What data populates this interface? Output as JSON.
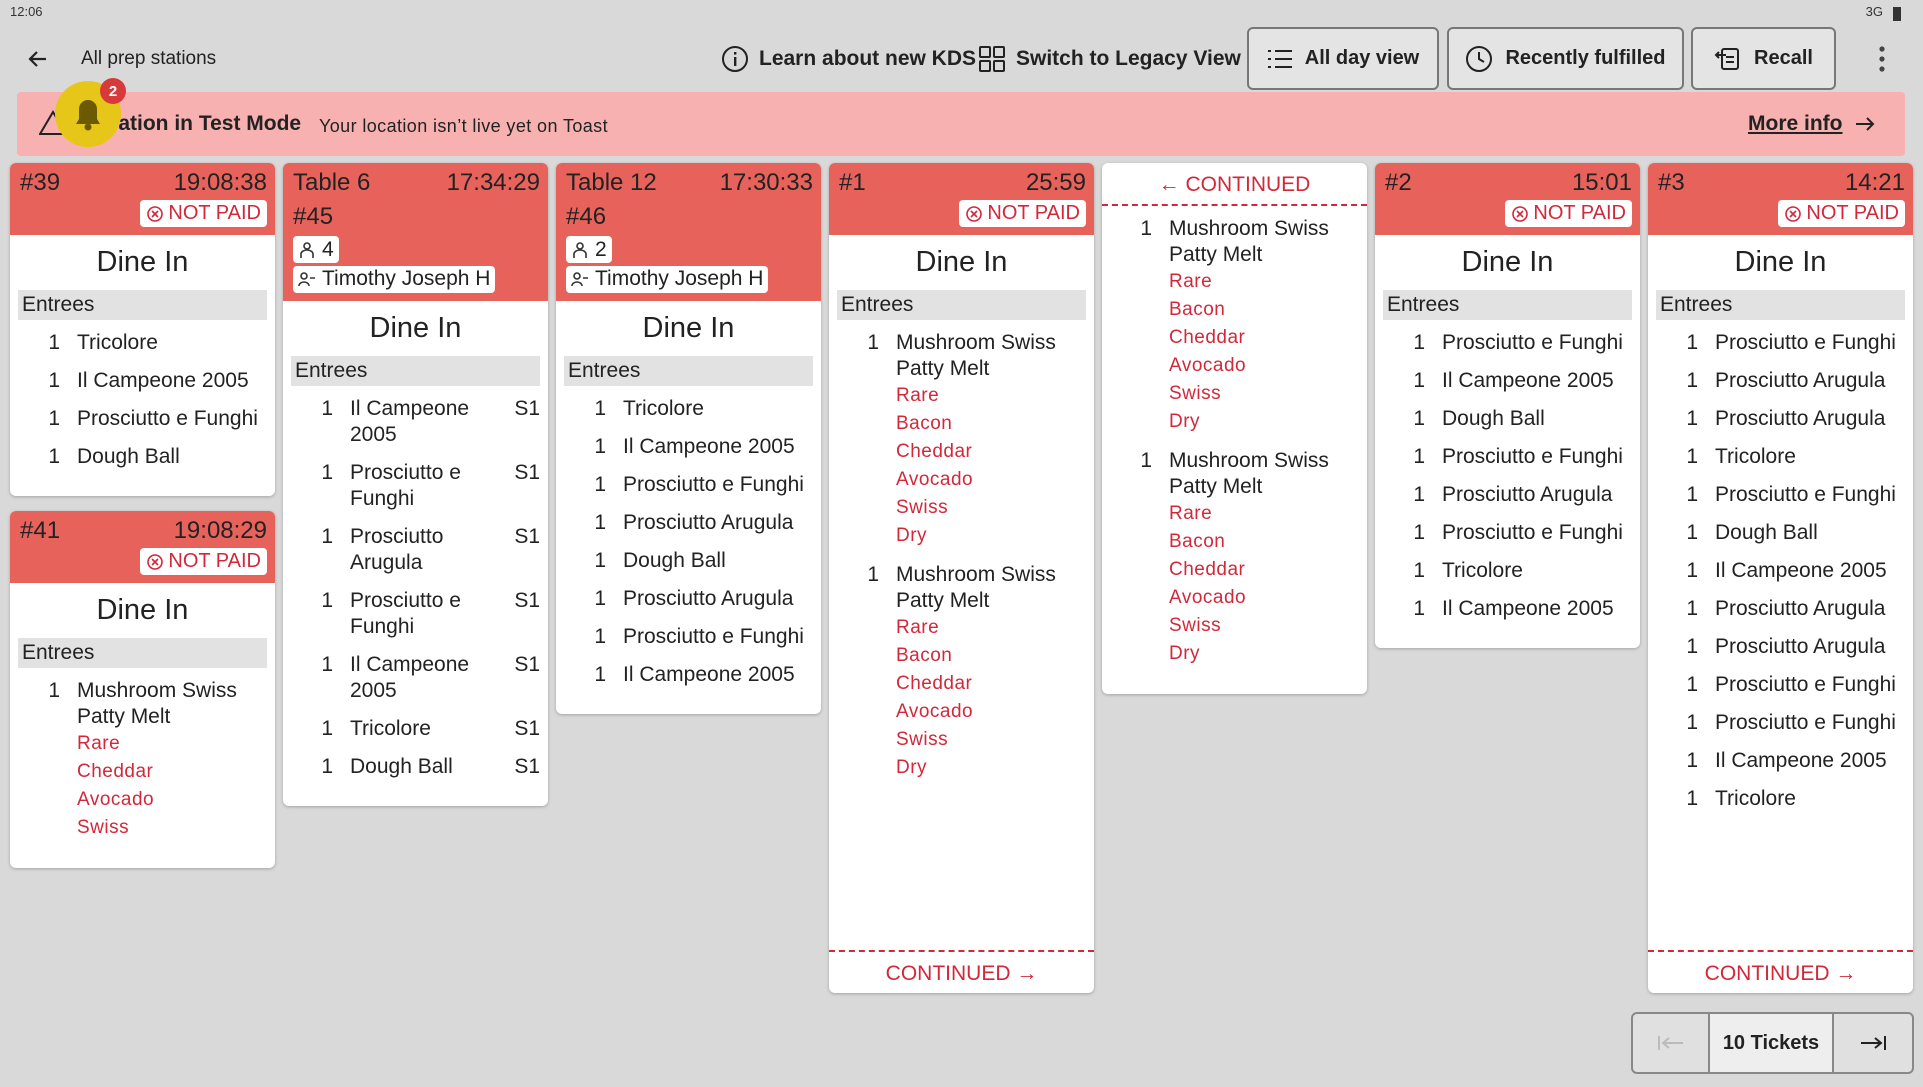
{
  "status_bar": {
    "time": "12:06",
    "network": "3G"
  },
  "toolbar": {
    "title": "All prep stations",
    "learn": "Learn about new KDS",
    "legacy": "Switch to Legacy View",
    "buttons": [
      "All day view",
      "Recently fulfilled",
      "Recall"
    ]
  },
  "notification": {
    "count": 2
  },
  "banner": {
    "title": "Location in Test Mode",
    "message": "Your location isn’t live yet on Toast",
    "link": "More info"
  },
  "columns": [
    {
      "tickets": [
        {
          "name": "#39",
          "time": "19:08:38",
          "payment": "NOT PAID",
          "order_type": "Dine In",
          "section": "Entrees",
          "items": [
            {
              "qty": 1,
              "name": "Tricolore"
            },
            {
              "qty": 1,
              "name": "Il Campeone 2005"
            },
            {
              "qty": 1,
              "name": "Prosciutto e Funghi"
            },
            {
              "qty": 1,
              "name": "Dough Ball"
            }
          ]
        },
        {
          "name": "#41",
          "time": "19:08:29",
          "payment": "NOT PAID",
          "order_type": "Dine In",
          "section": "Entrees",
          "items": [
            {
              "qty": 1,
              "name": "Mushroom Swiss Patty Melt",
              "mods": [
                "Rare",
                "Cheddar",
                "Avocado",
                "Swiss"
              ]
            }
          ]
        }
      ]
    },
    {
      "tickets": [
        {
          "name": "Table 6",
          "time": "17:34:29",
          "number": "#45",
          "guests": 4,
          "server": "Timothy Joseph H",
          "order_type": "Dine In",
          "section": "Entrees",
          "items": [
            {
              "qty": 1,
              "name": "Il Campeone 2005",
              "seat": "S1"
            },
            {
              "qty": 1,
              "name": "Prosciutto e Funghi",
              "seat": "S1"
            },
            {
              "qty": 1,
              "name": "Prosciutto Arugula",
              "seat": "S1"
            },
            {
              "qty": 1,
              "name": "Prosciutto e Funghi",
              "seat": "S1"
            },
            {
              "qty": 1,
              "name": "Il Campeone 2005",
              "seat": "S1"
            },
            {
              "qty": 1,
              "name": "Tricolore",
              "seat": "S1"
            },
            {
              "qty": 1,
              "name": "Dough Ball",
              "seat": "S1"
            }
          ]
        }
      ]
    },
    {
      "tickets": [
        {
          "name": "Table 12",
          "time": "17:30:33",
          "number": "#46",
          "guests": 2,
          "server": "Timothy Joseph H",
          "order_type": "Dine In",
          "section": "Entrees",
          "items": [
            {
              "qty": 1,
              "name": "Tricolore"
            },
            {
              "qty": 1,
              "name": "Il Campeone 2005"
            },
            {
              "qty": 1,
              "name": "Prosciutto e Funghi"
            },
            {
              "qty": 1,
              "name": "Prosciutto Arugula"
            },
            {
              "qty": 1,
              "name": "Dough Ball"
            },
            {
              "qty": 1,
              "name": "Prosciutto Arugula"
            },
            {
              "qty": 1,
              "name": "Prosciutto e Funghi"
            },
            {
              "qty": 1,
              "name": "Il Campeone 2005"
            }
          ]
        }
      ]
    },
    {
      "tickets": [
        {
          "name": "#1",
          "time": "25:59",
          "payment": "NOT PAID",
          "order_type": "Dine In",
          "section": "Entrees",
          "items": [
            {
              "qty": 1,
              "name": "Mushroom Swiss Patty Melt",
              "mods": [
                "Rare",
                "Bacon",
                "Cheddar",
                "Avocado",
                "Swiss",
                "Dry"
              ]
            },
            {
              "qty": 1,
              "name": "Mushroom Swiss Patty Melt",
              "mods": [
                "Rare",
                "Bacon",
                "Cheddar",
                "Avocado",
                "Swiss",
                "Dry"
              ]
            }
          ],
          "continued_to": "CONTINUED →"
        }
      ]
    },
    {
      "tickets": [
        {
          "continued_from": "← CONTINUED",
          "items": [
            {
              "qty": 1,
              "name": "Mushroom Swiss Patty Melt",
              "mods": [
                "Rare",
                "Bacon",
                "Cheddar",
                "Avocado",
                "Swiss",
                "Dry"
              ]
            },
            {
              "qty": 1,
              "name": "Mushroom Swiss Patty Melt",
              "mods": [
                "Rare",
                "Bacon",
                "Cheddar",
                "Avocado",
                "Swiss",
                "Dry"
              ]
            }
          ]
        }
      ]
    },
    {
      "tickets": [
        {
          "name": "#2",
          "time": "15:01",
          "payment": "NOT PAID",
          "order_type": "Dine In",
          "section": "Entrees",
          "items": [
            {
              "qty": 1,
              "name": "Prosciutto e Funghi"
            },
            {
              "qty": 1,
              "name": "Il Campeone 2005"
            },
            {
              "qty": 1,
              "name": "Dough Ball"
            },
            {
              "qty": 1,
              "name": "Prosciutto e Funghi"
            },
            {
              "qty": 1,
              "name": "Prosciutto Arugula"
            },
            {
              "qty": 1,
              "name": "Prosciutto e Funghi"
            },
            {
              "qty": 1,
              "name": "Tricolore"
            },
            {
              "qty": 1,
              "name": "Il Campeone 2005"
            }
          ]
        }
      ]
    },
    {
      "tickets": [
        {
          "name": "#3",
          "time": "14:21",
          "payment": "NOT PAID",
          "order_type": "Dine In",
          "section": "Entrees",
          "items": [
            {
              "qty": 1,
              "name": "Prosciutto e Funghi"
            },
            {
              "qty": 1,
              "name": "Prosciutto Arugula"
            },
            {
              "qty": 1,
              "name": "Prosciutto Arugula"
            },
            {
              "qty": 1,
              "name": "Tricolore"
            },
            {
              "qty": 1,
              "name": "Prosciutto e Funghi"
            },
            {
              "qty": 1,
              "name": "Dough Ball"
            },
            {
              "qty": 1,
              "name": "Il Campeone 2005"
            },
            {
              "qty": 1,
              "name": "Prosciutto Arugula"
            },
            {
              "qty": 1,
              "name": "Prosciutto Arugula"
            },
            {
              "qty": 1,
              "name": "Prosciutto e Funghi"
            },
            {
              "qty": 1,
              "name": "Prosciutto e Funghi"
            },
            {
              "qty": 1,
              "name": "Il Campeone 2005"
            },
            {
              "qty": 1,
              "name": "Tricolore"
            }
          ],
          "continued_to": "CONTINUED →"
        }
      ]
    }
  ],
  "footer": {
    "tickets": "10 Tickets"
  }
}
